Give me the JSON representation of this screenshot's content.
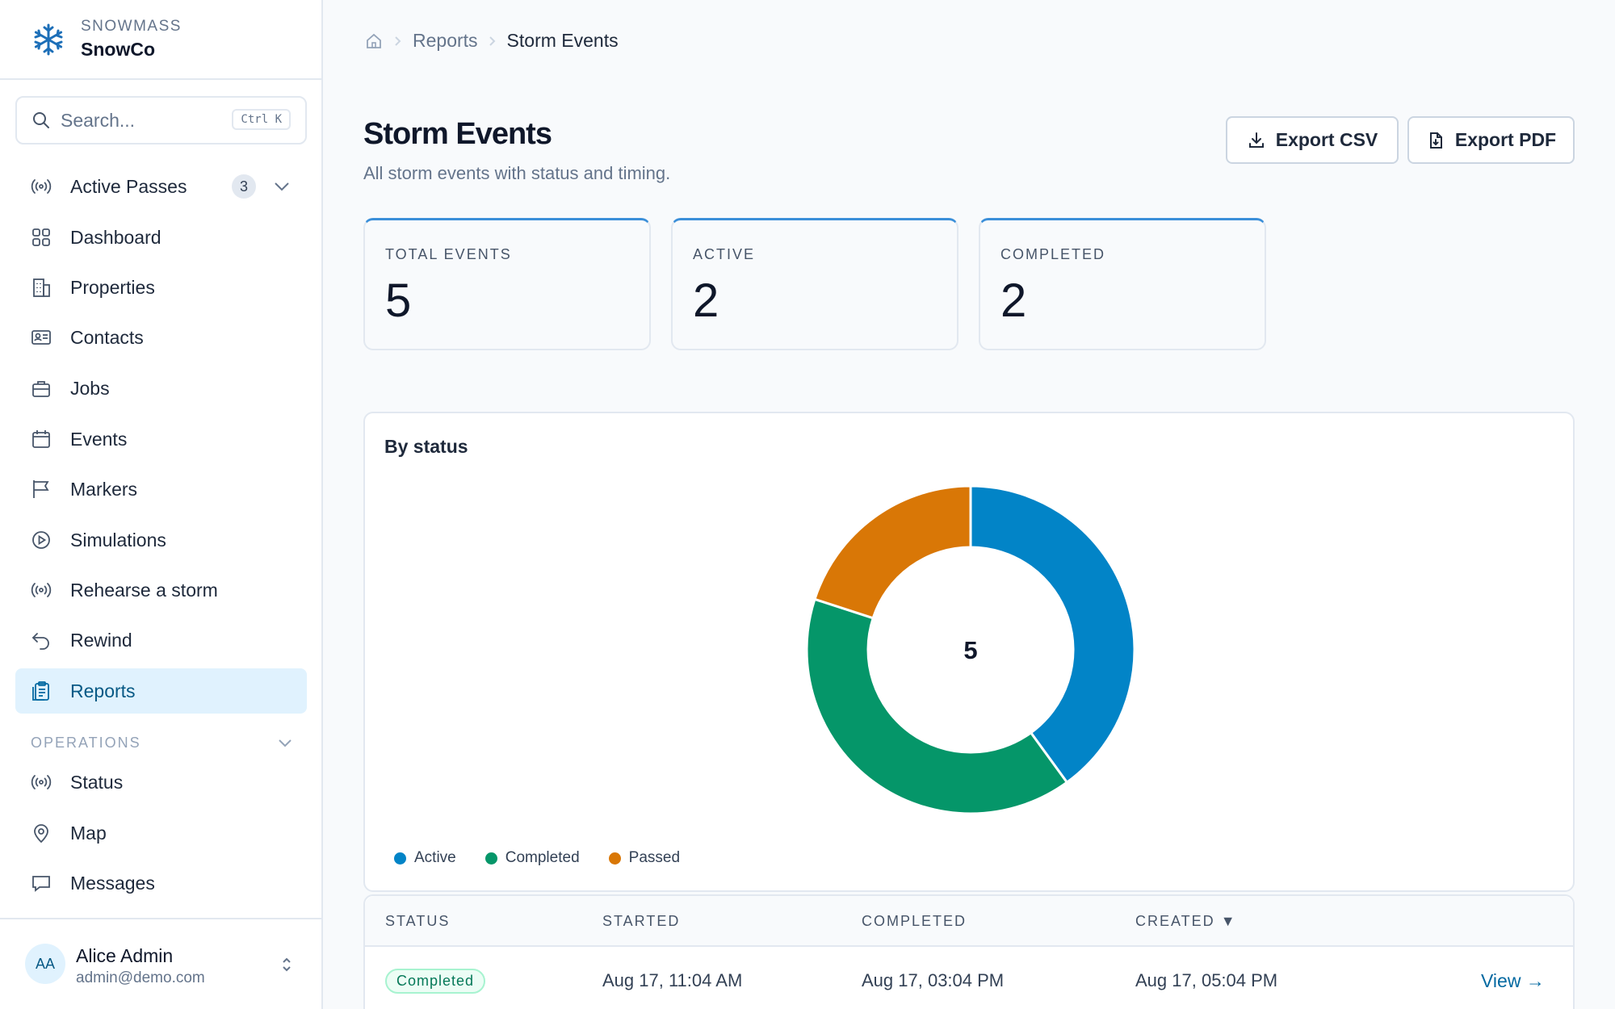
{
  "brand": {
    "org": "SNOWMASS",
    "name": "SnowCo"
  },
  "search": {
    "placeholder": "Search...",
    "shortcut": "Ctrl K"
  },
  "nav": {
    "active_passes": {
      "label": "Active Passes",
      "badge": "3"
    },
    "items": [
      {
        "label": "Dashboard",
        "icon": "grid-icon"
      },
      {
        "label": "Properties",
        "icon": "building-icon"
      },
      {
        "label": "Contacts",
        "icon": "id-card-icon"
      },
      {
        "label": "Jobs",
        "icon": "briefcase-icon"
      },
      {
        "label": "Events",
        "icon": "calendar-icon"
      },
      {
        "label": "Markers",
        "icon": "flag-icon"
      },
      {
        "label": "Simulations",
        "icon": "play-circle-icon"
      },
      {
        "label": "Rehearse a storm",
        "icon": "broadcast-icon"
      },
      {
        "label": "Rewind",
        "icon": "undo-icon"
      },
      {
        "label": "Reports",
        "icon": "clipboard-icon",
        "active": true
      }
    ],
    "operations_label": "OPERATIONS",
    "operations": [
      {
        "label": "Status",
        "icon": "broadcast-icon"
      },
      {
        "label": "Map",
        "icon": "map-pin-icon"
      },
      {
        "label": "Messages",
        "icon": "chat-icon"
      }
    ]
  },
  "user": {
    "initials": "AA",
    "name": "Alice Admin",
    "email": "admin@demo.com"
  },
  "breadcrumb": {
    "parent": "Reports",
    "current": "Storm Events"
  },
  "page": {
    "title": "Storm Events",
    "subtitle": "All storm events with status and timing."
  },
  "actions": {
    "export_csv": "Export CSV",
    "export_pdf": "Export PDF"
  },
  "stats": [
    {
      "label": "TOTAL EVENTS",
      "value": "5"
    },
    {
      "label": "ACTIVE",
      "value": "2"
    },
    {
      "label": "COMPLETED",
      "value": "2"
    }
  ],
  "chart_data": {
    "type": "pie",
    "title": "By status",
    "center_label": "5",
    "categories": [
      "Active",
      "Completed",
      "Passed"
    ],
    "values": [
      2,
      2,
      1
    ],
    "colors": [
      "#0284c7",
      "#059669",
      "#d97706"
    ]
  },
  "table": {
    "headers": [
      "STATUS",
      "STARTED",
      "COMPLETED",
      "CREATED"
    ],
    "sort_indicator": "▼",
    "rows": [
      {
        "status": "Completed",
        "started": "Aug 17, 11:04 AM",
        "completed": "Aug 17, 03:04 PM",
        "created": "Aug 17, 05:04 PM",
        "action": "View →"
      }
    ]
  }
}
